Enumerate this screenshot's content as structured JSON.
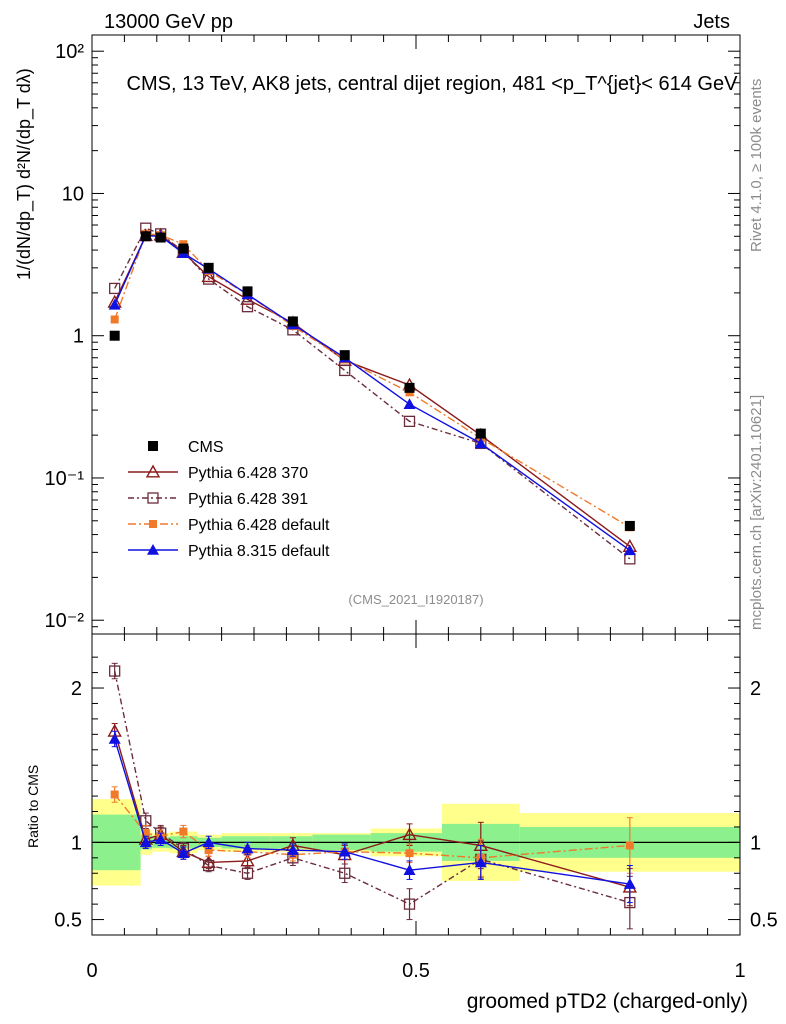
{
  "header": {
    "energy_label": "13000 GeV pp",
    "category_label": "Jets",
    "side_label_rivet": "Rivet 4.1.0, ≥ 100k events",
    "side_label_source": "mcplots.cern.ch [arXiv:2401.10621]",
    "analysis_id": "(CMS_2021_I1920187)"
  },
  "chart_data": {
    "type": "scatter",
    "title": "CMS, 13 TeV, AK8 jets, central dijet region, 481 <p_T^{jet}< 614 GeV",
    "ylabel_main": "1/(dN/dp_T) d²N/(dp_T dλ)",
    "ylabel_ratio": "Ratio to CMS",
    "xlabel": "groomed pTD2 (charged-only)",
    "xlim": [
      0,
      1
    ],
    "ylim_main": [
      0.008,
      130
    ],
    "ylim_ratio": [
      0.4,
      2.35
    ],
    "yscale_main": "log",
    "main_ticks": [
      {
        "v": 0.01,
        "label": "10⁻²"
      },
      {
        "v": 0.1,
        "label": "10⁻¹"
      },
      {
        "v": 1,
        "label": "1"
      },
      {
        "v": 10,
        "label": "10"
      },
      {
        "v": 100,
        "label": "10²"
      }
    ],
    "ratio_ticks": [
      {
        "v": 0.5,
        "label": "0.5"
      },
      {
        "v": 1,
        "label": "1"
      },
      {
        "v": 2,
        "label": "2"
      }
    ],
    "x_ticks": [
      {
        "v": 0,
        "label": "0"
      },
      {
        "v": 0.5,
        "label": "0.5"
      },
      {
        "v": 1,
        "label": "1"
      }
    ],
    "bins": [
      0,
      0.075,
      0.093,
      0.12,
      0.163,
      0.2,
      0.275,
      0.34,
      0.43,
      0.54,
      0.66,
      1.0
    ],
    "x": [
      0.035,
      0.083,
      0.106,
      0.141,
      0.18,
      0.24,
      0.31,
      0.39,
      0.49,
      0.6,
      0.83
    ],
    "legend_position": "bottom-left",
    "legend": [
      "CMS",
      "Pythia 6.428 370",
      "Pythia 6.428 391",
      "Pythia 6.428 default",
      "Pythia 8.315 default"
    ],
    "data": {
      "name": "CMS",
      "values": [
        1.0,
        5.0,
        4.9,
        4.1,
        3.0,
        2.05,
        1.26,
        0.73,
        0.43,
        0.205,
        0.046
      ],
      "ratio_band_inner": [
        0.18,
        0.045,
        0.035,
        0.04,
        0.03,
        0.04,
        0.04,
        0.05,
        0.06,
        0.12,
        0.1
      ],
      "ratio_band_outer": [
        0.28,
        0.08,
        0.06,
        0.07,
        0.05,
        0.06,
        0.06,
        0.06,
        0.09,
        0.25,
        0.19
      ]
    },
    "series": [
      {
        "name": "Pythia 6.428 370",
        "color": "#8b1a1a",
        "marker": "triangle-open",
        "dash": "",
        "values": [
          1.72,
          5.05,
          5.1,
          3.85,
          2.6,
          1.8,
          1.23,
          0.67,
          0.45,
          0.2,
          0.033
        ],
        "ratio": [
          1.72,
          1.02,
          1.05,
          0.94,
          0.87,
          0.88,
          0.98,
          0.92,
          1.05,
          0.98,
          0.71
        ],
        "ratio_err": [
          0.05,
          0.05,
          0.05,
          0.04,
          0.04,
          0.05,
          0.05,
          0.06,
          0.07,
          0.15,
          0.12
        ]
      },
      {
        "name": "Pythia 6.428 391",
        "color": "#6b2d3c",
        "marker": "square-open",
        "dash": "6,3,2,3",
        "values": [
          2.15,
          5.7,
          5.2,
          3.9,
          2.5,
          1.6,
          1.1,
          0.57,
          0.25,
          0.175,
          0.027
        ],
        "ratio": [
          2.11,
          1.14,
          1.06,
          0.96,
          0.85,
          0.8,
          0.9,
          0.8,
          0.6,
          0.89,
          0.61
        ],
        "ratio_err": [
          0.05,
          0.05,
          0.05,
          0.04,
          0.04,
          0.04,
          0.05,
          0.06,
          0.1,
          0.12,
          0.17
        ]
      },
      {
        "name": "Pythia 6.428 default",
        "color": "#f07a2a",
        "marker": "square-filled",
        "dash": "8,3,2,3",
        "values": [
          1.3,
          5.2,
          5.1,
          4.4,
          2.85,
          1.95,
          1.17,
          0.68,
          0.4,
          0.19,
          0.045
        ],
        "ratio": [
          1.31,
          1.06,
          1.04,
          1.07,
          0.95,
          0.94,
          0.92,
          0.94,
          0.93,
          0.9,
          0.98
        ],
        "ratio_err": [
          0.05,
          0.05,
          0.04,
          0.04,
          0.04,
          0.04,
          0.04,
          0.05,
          0.06,
          0.12,
          0.18
        ]
      },
      {
        "name": "Pythia 8.315 default",
        "color": "#1010e0",
        "marker": "triangle-filled",
        "dash": "",
        "values": [
          1.65,
          5.05,
          5.0,
          3.8,
          2.95,
          1.95,
          1.2,
          0.7,
          0.33,
          0.175,
          0.031
        ],
        "ratio": [
          1.67,
          1.0,
          1.02,
          0.93,
          1.0,
          0.96,
          0.95,
          0.94,
          0.82,
          0.87,
          0.73
        ],
        "ratio_err": [
          0.05,
          0.04,
          0.04,
          0.04,
          0.04,
          0.04,
          0.04,
          0.05,
          0.06,
          0.11,
          0.12
        ]
      }
    ]
  }
}
